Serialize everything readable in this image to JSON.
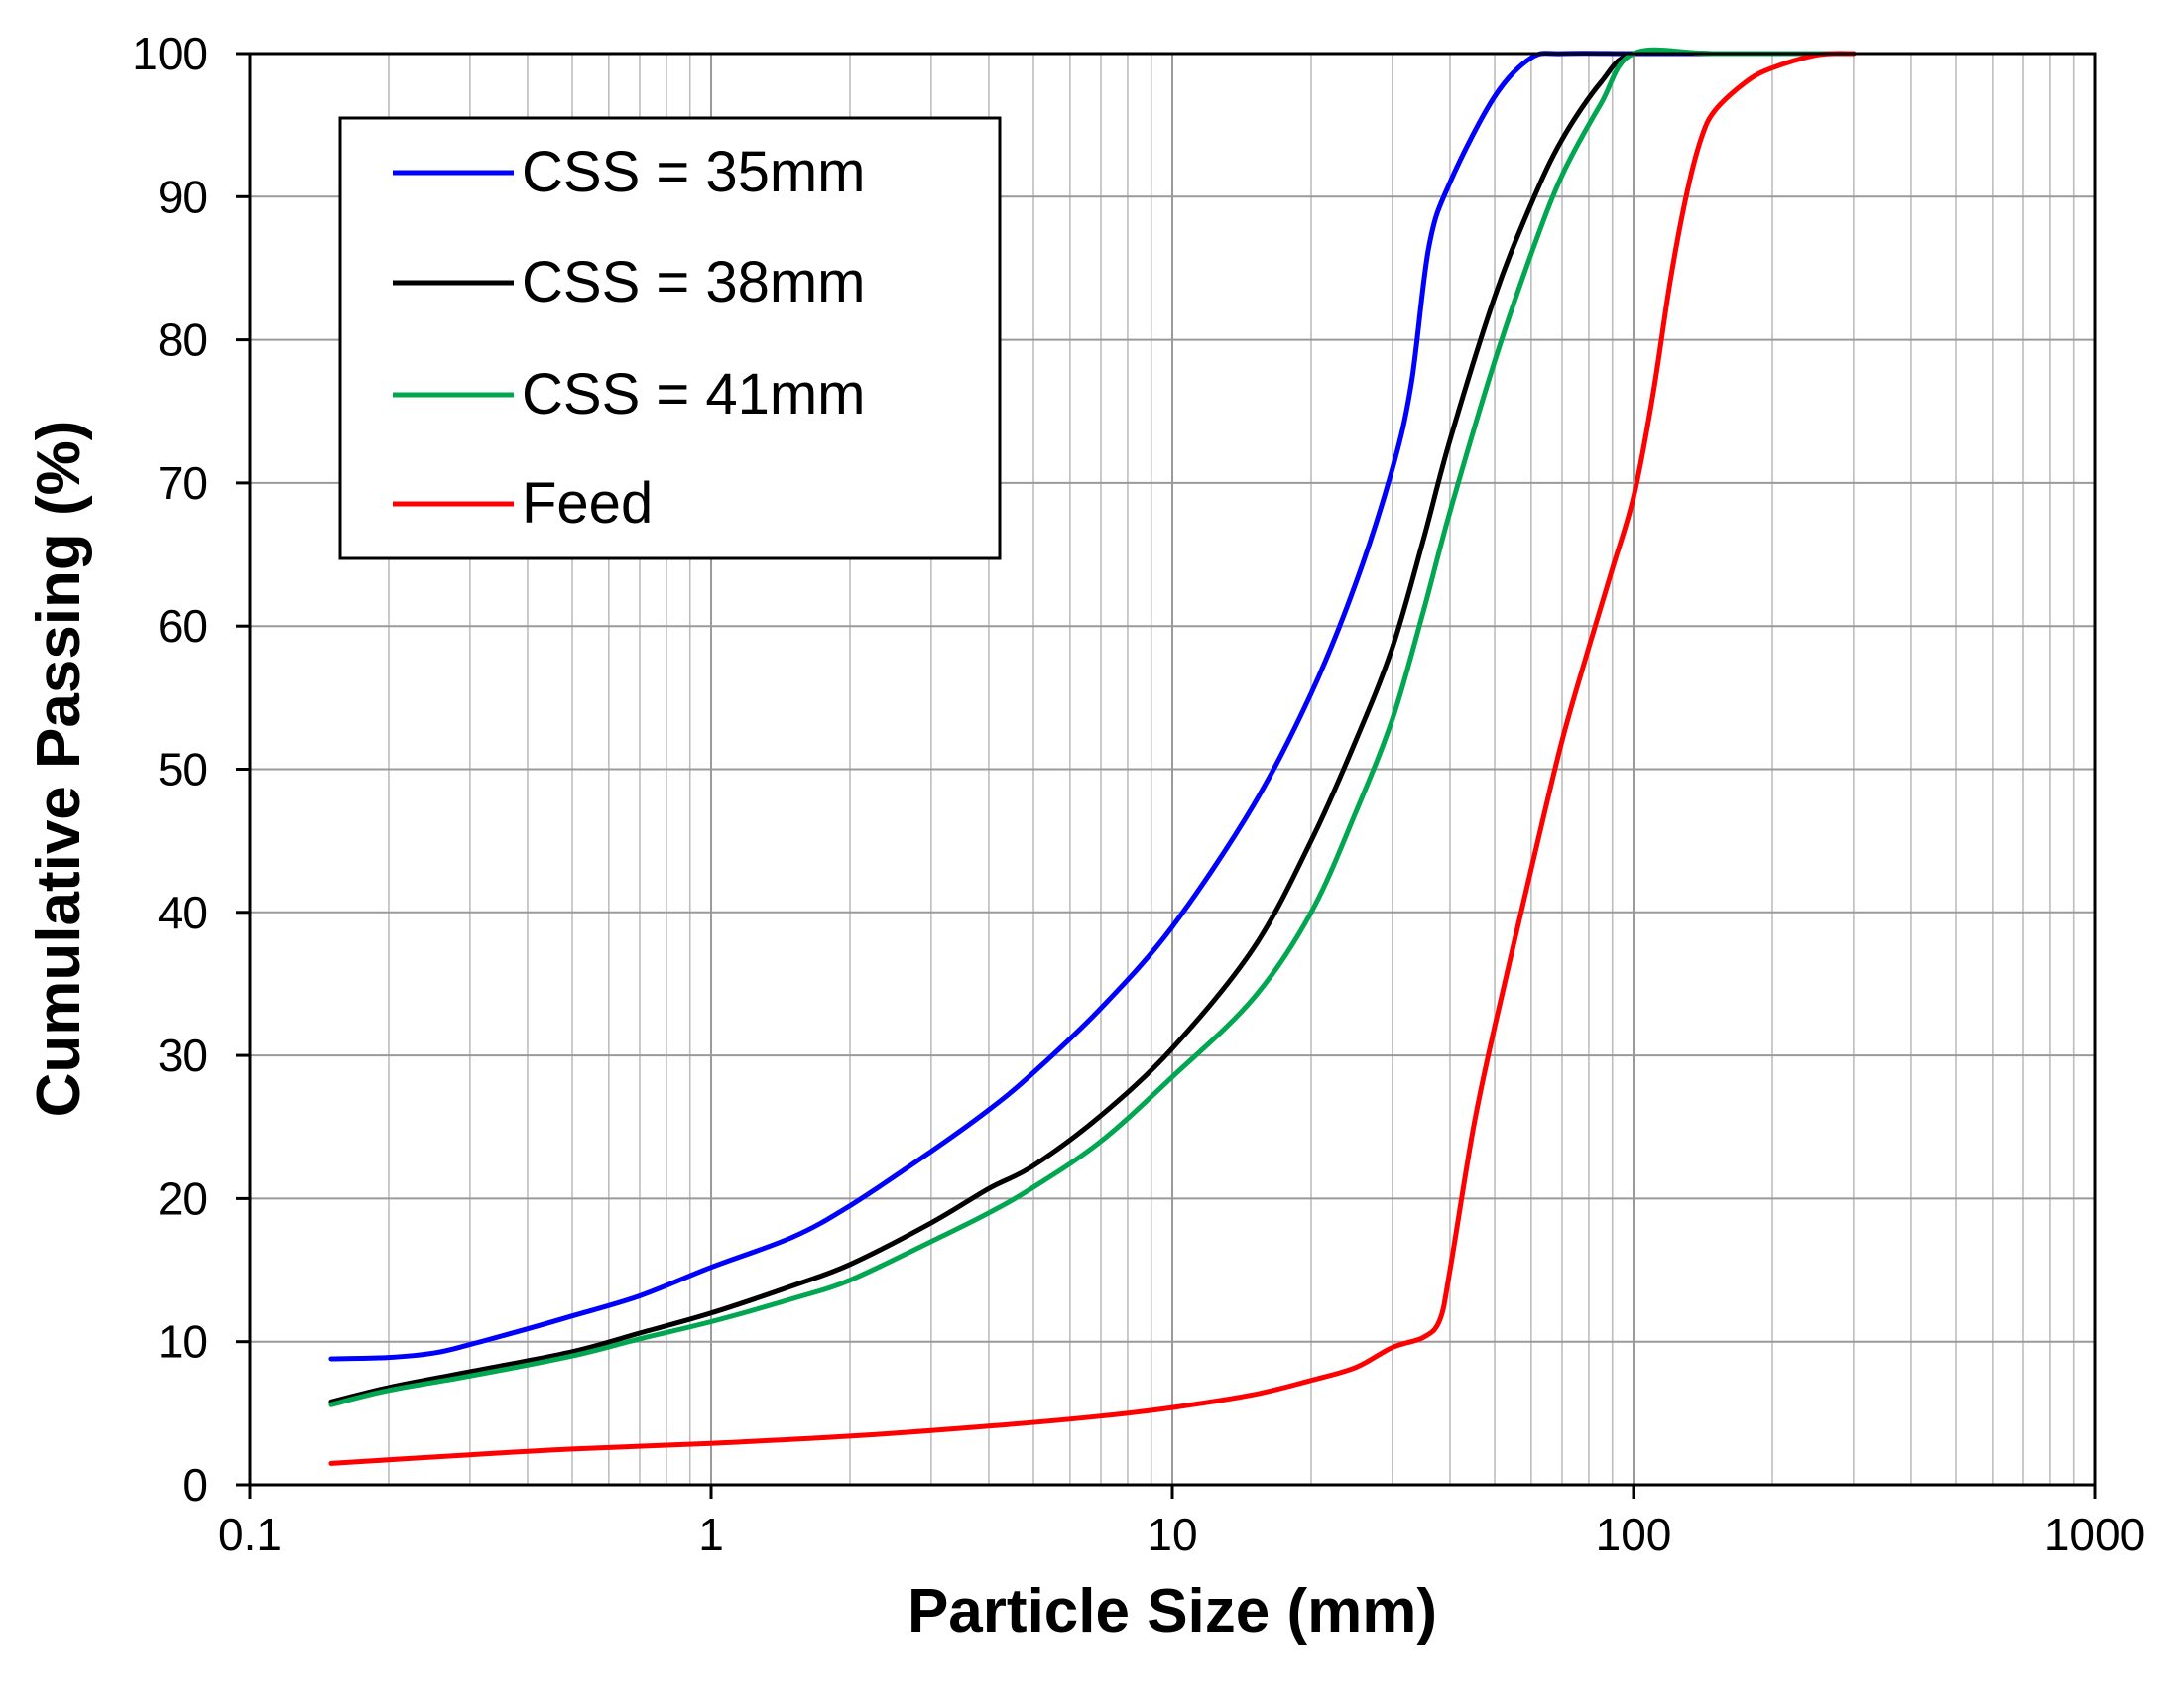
{
  "chart_data": {
    "type": "line",
    "title": "",
    "xlabel": "Particle Size (mm)",
    "ylabel": "Cumulative Passing (%)",
    "xscale": "log",
    "xlim": [
      0.1,
      1000
    ],
    "ylim": [
      0,
      100
    ],
    "x_ticks": [
      {
        "value": 0.1,
        "label": "0.1"
      },
      {
        "value": 1,
        "label": "1"
      },
      {
        "value": 10,
        "label": "10"
      },
      {
        "value": 100,
        "label": "100"
      },
      {
        "value": 1000,
        "label": "1000"
      }
    ],
    "y_ticks": [
      {
        "value": 0,
        "label": "0"
      },
      {
        "value": 10,
        "label": "10"
      },
      {
        "value": 20,
        "label": "20"
      },
      {
        "value": 30,
        "label": "30"
      },
      {
        "value": 40,
        "label": "40"
      },
      {
        "value": 50,
        "label": "50"
      },
      {
        "value": 60,
        "label": "60"
      },
      {
        "value": 70,
        "label": "70"
      },
      {
        "value": 80,
        "label": "80"
      },
      {
        "value": 90,
        "label": "90"
      },
      {
        "value": 100,
        "label": "100"
      }
    ],
    "grid": true,
    "legend_position": "top-left",
    "series": [
      {
        "name": "CSS = 35mm",
        "color": "#0000ff",
        "points": [
          [
            0.15,
            8.8
          ],
          [
            0.2,
            8.9
          ],
          [
            0.25,
            9.2
          ],
          [
            0.3,
            9.8
          ],
          [
            0.4,
            10.9
          ],
          [
            0.5,
            11.8
          ],
          [
            0.7,
            13.2
          ],
          [
            1,
            15.2
          ],
          [
            1.5,
            17.3
          ],
          [
            2,
            19.5
          ],
          [
            3,
            23.3
          ],
          [
            4,
            26.2
          ],
          [
            5,
            28.8
          ],
          [
            7,
            33.3
          ],
          [
            10,
            39
          ],
          [
            15,
            47.5
          ],
          [
            20,
            55.3
          ],
          [
            25,
            63
          ],
          [
            30,
            71
          ],
          [
            33,
            77
          ],
          [
            36,
            86.5
          ],
          [
            40,
            91
          ],
          [
            50,
            97
          ],
          [
            60,
            99.7
          ],
          [
            70,
            100
          ],
          [
            100,
            100
          ],
          [
            150,
            100
          ]
        ]
      },
      {
        "name": "CSS = 38mm",
        "color": "#000000",
        "points": [
          [
            0.15,
            5.8
          ],
          [
            0.2,
            6.8
          ],
          [
            0.3,
            7.9
          ],
          [
            0.5,
            9.3
          ],
          [
            0.7,
            10.6
          ],
          [
            1,
            12
          ],
          [
            1.5,
            13.9
          ],
          [
            2,
            15.4
          ],
          [
            3,
            18.3
          ],
          [
            4,
            20.7
          ],
          [
            5,
            22.3
          ],
          [
            7,
            25.8
          ],
          [
            10,
            30.5
          ],
          [
            15,
            37.5
          ],
          [
            20,
            45
          ],
          [
            25,
            52
          ],
          [
            30,
            58.5
          ],
          [
            35,
            66
          ],
          [
            40,
            73
          ],
          [
            50,
            83
          ],
          [
            60,
            89.5
          ],
          [
            70,
            94
          ],
          [
            85,
            98
          ],
          [
            100,
            100
          ],
          [
            150,
            100
          ],
          [
            300,
            100
          ]
        ]
      },
      {
        "name": "CSS = 41mm",
        "color": "#00a650",
        "points": [
          [
            0.15,
            5.6
          ],
          [
            0.2,
            6.6
          ],
          [
            0.3,
            7.6
          ],
          [
            0.5,
            9
          ],
          [
            0.7,
            10.2
          ],
          [
            1,
            11.4
          ],
          [
            1.5,
            13
          ],
          [
            2,
            14.3
          ],
          [
            3,
            17
          ],
          [
            4,
            19
          ],
          [
            5,
            20.8
          ],
          [
            7,
            24
          ],
          [
            10,
            28.5
          ],
          [
            15,
            34
          ],
          [
            20,
            40
          ],
          [
            25,
            47
          ],
          [
            30,
            53.5
          ],
          [
            35,
            61
          ],
          [
            40,
            68
          ],
          [
            50,
            78.5
          ],
          [
            60,
            86
          ],
          [
            70,
            91.5
          ],
          [
            85,
            96.5
          ],
          [
            100,
            100
          ],
          [
            150,
            100
          ],
          [
            300,
            100
          ]
        ]
      },
      {
        "name": "Feed",
        "color": "#ff0000",
        "points": [
          [
            0.15,
            1.5
          ],
          [
            0.3,
            2.1
          ],
          [
            0.5,
            2.5
          ],
          [
            1,
            2.9
          ],
          [
            2,
            3.4
          ],
          [
            4,
            4.1
          ],
          [
            7,
            4.8
          ],
          [
            10,
            5.4
          ],
          [
            15,
            6.3
          ],
          [
            20,
            7.3
          ],
          [
            25,
            8.2
          ],
          [
            30,
            9.6
          ],
          [
            35,
            10.3
          ],
          [
            38,
            11.5
          ],
          [
            40,
            15
          ],
          [
            45,
            25
          ],
          [
            50,
            32
          ],
          [
            60,
            43
          ],
          [
            70,
            52
          ],
          [
            80,
            58.5
          ],
          [
            90,
            64
          ],
          [
            100,
            69
          ],
          [
            110,
            76
          ],
          [
            120,
            84
          ],
          [
            130,
            90
          ],
          [
            140,
            94
          ],
          [
            150,
            96
          ],
          [
            175,
            98
          ],
          [
            200,
            99
          ],
          [
            250,
            99.9
          ],
          [
            300,
            100
          ]
        ]
      }
    ]
  }
}
